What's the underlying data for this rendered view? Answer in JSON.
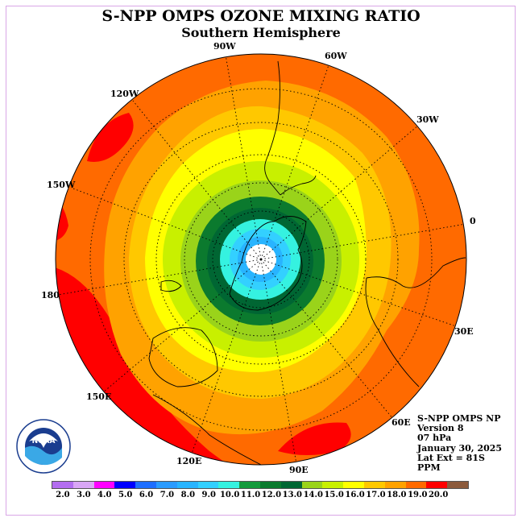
{
  "header": {
    "title": "S-NPP OMPS OZONE MIXING RATIO",
    "subtitle": "Southern Hemisphere"
  },
  "longitude_labels": [
    "90W",
    "60W",
    "30W",
    "0",
    "30E",
    "60E",
    "90E",
    "120E",
    "150E",
    "180",
    "150W",
    "120W"
  ],
  "info": {
    "line1": "S-NPP OMPS NP",
    "line2": "Version 8",
    "line3": "07 hPa",
    "line4": "January 30, 2025",
    "line5": "Lat Ext = 81S",
    "line6": "PPM"
  },
  "colorbar": {
    "ticks": [
      "2.0",
      "3.0",
      "4.0",
      "5.0",
      "6.0",
      "7.0",
      "8.0",
      "9.0",
      "10.0",
      "11.0",
      "12.0",
      "13.0",
      "14.0",
      "15.0",
      "16.0",
      "17.0",
      "18.0",
      "19.0",
      "20.0"
    ],
    "colors": [
      "#b36ef0",
      "#d9a6f5",
      "#ff00ff",
      "#0000ff",
      "#1e6eff",
      "#2a9bff",
      "#28b4ff",
      "#33d0ff",
      "#35f2e0",
      "#149a3c",
      "#0b7a2e",
      "#006633",
      "#9ad31a",
      "#c8f000",
      "#ffff00",
      "#ffc800",
      "#ffa200",
      "#ff6a00",
      "#ff0000",
      "#8b5a3c"
    ]
  },
  "map": {
    "levels": [
      {
        "value": 19.0,
        "color": "#ff0000"
      },
      {
        "value": 18.0,
        "color": "#ff6a00"
      },
      {
        "value": 17.0,
        "color": "#ffa200"
      },
      {
        "value": 16.0,
        "color": "#ffc800"
      },
      {
        "value": 15.0,
        "color": "#ffff00"
      },
      {
        "value": 14.0,
        "color": "#c8f000"
      },
      {
        "value": 13.0,
        "color": "#9ad31a"
      },
      {
        "value": 12.0,
        "color": "#0b7a2e"
      },
      {
        "value": 11.0,
        "color": "#006633"
      },
      {
        "value": 10.0,
        "color": "#35f2e0"
      },
      {
        "value": 9.0,
        "color": "#33d0ff"
      },
      {
        "value": 8.0,
        "color": "#28b4ff"
      }
    ]
  },
  "logo": {
    "text": "NOAA"
  }
}
